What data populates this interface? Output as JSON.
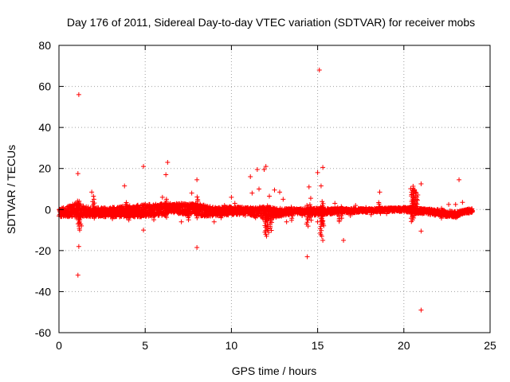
{
  "chart_data": {
    "type": "scatter",
    "title": "Day 176 of 2011, Sidereal Day-to-day VTEC variation (SDTVAR) for receiver mobs",
    "xlabel": "GPS time / hours",
    "ylabel": "SDTVAR / TECUs",
    "xlim": [
      0,
      25
    ],
    "ylim": [
      -60,
      80
    ],
    "xticks": [
      0,
      5,
      10,
      15,
      20,
      25
    ],
    "yticks": [
      -60,
      -40,
      -20,
      0,
      20,
      40,
      60,
      80
    ],
    "grid": true,
    "marker": "+",
    "color": "#ff0000",
    "band_segments": [
      [
        0.0,
        -1.5,
        -3.5,
        0.5
      ],
      [
        0.5,
        -1.2,
        -3.5,
        1.5
      ],
      [
        1.0,
        -0.8,
        -4.0,
        3.5
      ],
      [
        1.5,
        -1.5,
        -3.5,
        1.5
      ],
      [
        2.0,
        -1.5,
        -3.5,
        1.0
      ],
      [
        3.0,
        -1.0,
        -3.5,
        1.0
      ],
      [
        4.0,
        -1.0,
        -4.0,
        2.0
      ],
      [
        5.0,
        -0.5,
        -3.5,
        2.5
      ],
      [
        6.0,
        0.5,
        -3.0,
        3.0
      ],
      [
        7.0,
        0.5,
        -2.5,
        3.0
      ],
      [
        8.0,
        0.2,
        -3.0,
        3.0
      ],
      [
        9.0,
        -1.0,
        -3.5,
        1.0
      ],
      [
        10.0,
        -0.5,
        -2.5,
        1.5
      ],
      [
        11.0,
        -0.5,
        -2.5,
        1.0
      ],
      [
        12.0,
        -1.0,
        -5.0,
        1.5
      ],
      [
        13.0,
        -1.0,
        -3.0,
        0.5
      ],
      [
        14.0,
        -0.5,
        -2.0,
        0.5
      ],
      [
        15.0,
        -0.5,
        -3.0,
        1.0
      ],
      [
        15.5,
        -0.5,
        -2.5,
        0.5
      ],
      [
        16.0,
        -0.5,
        -2.0,
        0.5
      ],
      [
        17.0,
        -0.5,
        -1.5,
        0.5
      ],
      [
        18.0,
        -0.3,
        -1.5,
        0.5
      ],
      [
        19.0,
        0.0,
        -1.0,
        0.8
      ],
      [
        20.0,
        0.3,
        -1.0,
        1.0
      ],
      [
        20.5,
        0.5,
        -2.0,
        1.0
      ],
      [
        21.0,
        -0.5,
        -2.0,
        0.5
      ],
      [
        22.0,
        -1.5,
        -3.0,
        0.0
      ],
      [
        23.0,
        -2.5,
        -4.0,
        -1.0
      ],
      [
        23.5,
        -1.0,
        -2.0,
        0.0
      ],
      [
        24.0,
        -0.5,
        -1.5,
        0.5
      ]
    ],
    "spikes": [
      [
        1.05,
        -1,
        4.5
      ],
      [
        1.15,
        -9,
        3
      ],
      [
        1.2,
        -7,
        4
      ],
      [
        4.0,
        -5,
        3
      ],
      [
        6.2,
        -4,
        5
      ],
      [
        12.0,
        -13,
        1
      ],
      [
        12.1,
        -11,
        2
      ],
      [
        12.3,
        -10,
        1
      ],
      [
        15.2,
        -13,
        2
      ],
      [
        15.3,
        -8,
        4
      ],
      [
        16.2,
        -6,
        2
      ],
      [
        20.45,
        -6,
        11
      ],
      [
        20.55,
        -4,
        12
      ],
      [
        20.65,
        -3,
        10
      ],
      [
        20.75,
        -2,
        8
      ],
      [
        8.0,
        -4,
        6
      ],
      [
        2.0,
        -4,
        5
      ],
      [
        3.9,
        -4,
        4
      ],
      [
        7.5,
        -5,
        3
      ],
      [
        13.5,
        -5,
        2
      ],
      [
        14.4,
        -8,
        2
      ],
      [
        14.6,
        -5,
        3
      ],
      [
        16.4,
        -4,
        2
      ],
      [
        18.6,
        -2,
        4
      ],
      [
        22.2,
        -4,
        1
      ]
    ],
    "outliers": [
      [
        1.15,
        56
      ],
      [
        15.1,
        68
      ],
      [
        1.1,
        17.5
      ],
      [
        1.15,
        -18
      ],
      [
        1.1,
        -32
      ],
      [
        4.9,
        21
      ],
      [
        6.3,
        23
      ],
      [
        6.2,
        17
      ],
      [
        7.7,
        8
      ],
      [
        8.0,
        14.5
      ],
      [
        8.0,
        -18.5
      ],
      [
        11.1,
        16
      ],
      [
        11.5,
        19.5
      ],
      [
        12.0,
        21
      ],
      [
        11.9,
        19.5
      ],
      [
        11.6,
        10
      ],
      [
        11.2,
        8
      ],
      [
        12.2,
        6.5
      ],
      [
        12.5,
        9.5
      ],
      [
        12.8,
        8.5
      ],
      [
        14.4,
        -23
      ],
      [
        14.5,
        11
      ],
      [
        14.6,
        5.5
      ],
      [
        15.0,
        18
      ],
      [
        15.3,
        20.5
      ],
      [
        15.2,
        11.5
      ],
      [
        15.3,
        -15
      ],
      [
        15.0,
        -6
      ],
      [
        16.5,
        -15
      ],
      [
        18.6,
        8.5
      ],
      [
        21.0,
        12.5
      ],
      [
        21.0,
        -10.5
      ],
      [
        21.0,
        -49
      ],
      [
        23.2,
        14.5
      ],
      [
        3.8,
        11.5
      ],
      [
        1.9,
        8.5
      ],
      [
        2.0,
        6.5
      ],
      [
        1.2,
        -10
      ],
      [
        1.3,
        -8
      ],
      [
        4.9,
        -10
      ],
      [
        4.8,
        -3
      ],
      [
        6.0,
        6
      ],
      [
        9.0,
        -6
      ],
      [
        9.6,
        2
      ],
      [
        10.0,
        6
      ],
      [
        10.2,
        3
      ],
      [
        13.2,
        -6
      ],
      [
        13.0,
        5
      ],
      [
        16.0,
        3
      ],
      [
        17.2,
        2
      ],
      [
        17.8,
        1
      ],
      [
        19.0,
        -2
      ],
      [
        22.6,
        2.5
      ],
      [
        23.0,
        2.5
      ],
      [
        23.4,
        3.5
      ],
      [
        2.5,
        -3
      ],
      [
        3.1,
        -4.5
      ],
      [
        5.5,
        -5
      ],
      [
        7.1,
        -6
      ],
      [
        9.4,
        -4
      ],
      [
        10.8,
        -3
      ],
      [
        11.4,
        -4
      ],
      [
        14.1,
        -3
      ],
      [
        16.9,
        -3
      ],
      [
        18.1,
        -2.5
      ]
    ]
  }
}
